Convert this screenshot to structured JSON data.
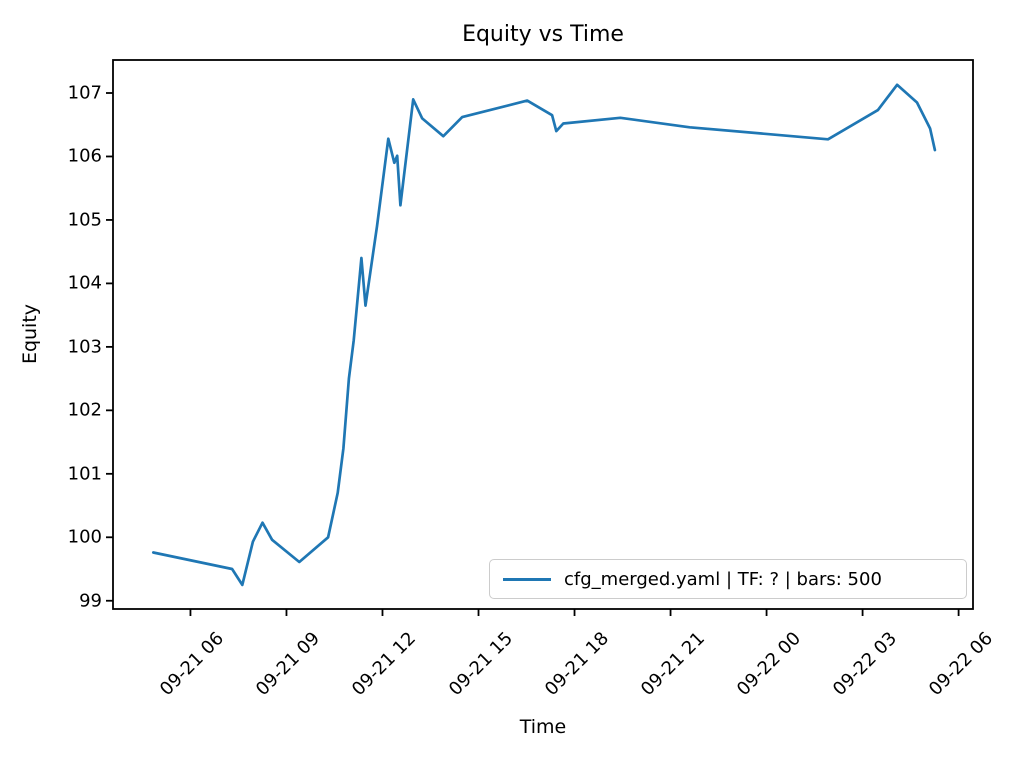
{
  "chart_data": {
    "type": "line",
    "title": "Equity vs Time",
    "xlabel": "Time",
    "ylabel": "Equity",
    "grid": false,
    "line_color": "#1f77b4",
    "legend": {
      "label": "cfg_merged.yaml | TF: ? | bars: 500",
      "position": "lower right"
    },
    "x_axis": {
      "unit": "hours since 09-21 00:00",
      "xlim": [
        3.58,
        30.45
      ],
      "tick_hours": [
        6,
        9,
        12,
        15,
        18,
        21,
        24,
        27,
        30
      ],
      "tick_labels": [
        "09-21 06",
        "09-21 09",
        "09-21 12",
        "09-21 15",
        "09-21 18",
        "09-21 21",
        "09-22 00",
        "09-22 03",
        "09-22 06"
      ],
      "tick_rotation_deg": 45
    },
    "y_axis": {
      "ylim": [
        98.87,
        107.52
      ],
      "ticks": [
        99,
        100,
        101,
        102,
        103,
        104,
        105,
        106,
        107
      ],
      "tick_labels": [
        "99",
        "100",
        "101",
        "102",
        "103",
        "104",
        "105",
        "106",
        "107"
      ]
    },
    "series": [
      {
        "name": "cfg_merged.yaml | TF: ? | bars: 500",
        "points": [
          [
            4.84,
            99.76
          ],
          [
            7.3,
            99.5
          ],
          [
            7.62,
            99.25
          ],
          [
            7.95,
            99.93
          ],
          [
            8.25,
            100.23
          ],
          [
            8.55,
            99.96
          ],
          [
            9.4,
            99.61
          ],
          [
            10.3,
            100.0
          ],
          [
            10.6,
            100.7
          ],
          [
            10.78,
            101.4
          ],
          [
            10.95,
            102.5
          ],
          [
            11.1,
            103.1
          ],
          [
            11.34,
            104.4
          ],
          [
            11.47,
            103.65
          ],
          [
            11.83,
            104.9
          ],
          [
            12.18,
            106.28
          ],
          [
            12.37,
            105.9
          ],
          [
            12.46,
            106.01
          ],
          [
            12.56,
            105.23
          ],
          [
            12.96,
            106.9
          ],
          [
            13.24,
            106.6
          ],
          [
            13.9,
            106.32
          ],
          [
            14.49,
            106.62
          ],
          [
            16.52,
            106.88
          ],
          [
            17.3,
            106.65
          ],
          [
            17.43,
            106.4
          ],
          [
            17.65,
            106.52
          ],
          [
            19.43,
            106.61
          ],
          [
            21.6,
            106.46
          ],
          [
            25.92,
            106.27
          ],
          [
            27.48,
            106.73
          ],
          [
            28.08,
            107.13
          ],
          [
            28.7,
            106.85
          ],
          [
            29.11,
            106.44
          ],
          [
            29.26,
            106.1
          ]
        ]
      }
    ]
  }
}
